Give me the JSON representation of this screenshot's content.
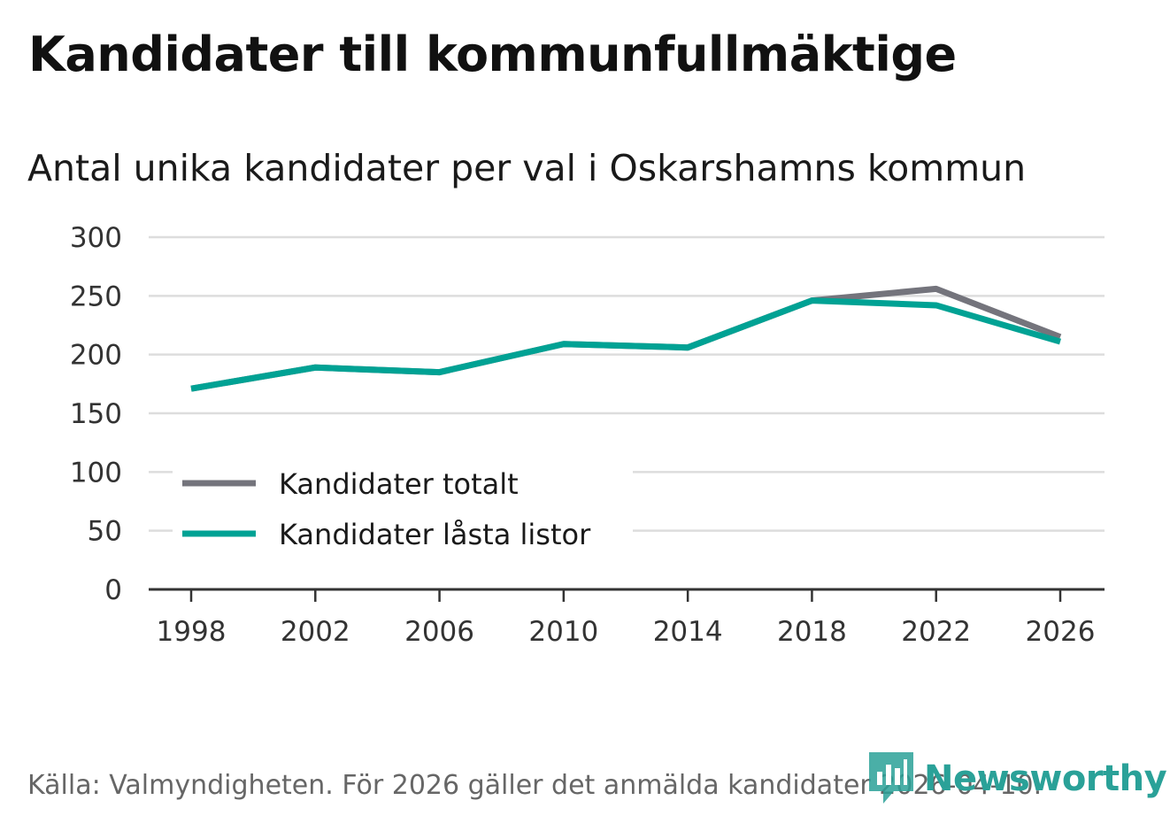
{
  "title": "Kandidater till kommunfullmäktige",
  "subtitle": "Antal unika kandidater per val i Oskarshamns kommun",
  "source": "Källa: Valmyndigheten. För 2026 gäller det anmälda kandidater 2026-04-10.",
  "brand": "Newsworthy",
  "colors": {
    "total": "#74747c",
    "locked": "#00a294",
    "grid": "#dddddd",
    "axis": "#333333",
    "brand": "#2aa198"
  },
  "chart_data": {
    "type": "line",
    "title": "Kandidater till kommunfullmäktige",
    "subtitle": "Antal unika kandidater per val i Oskarshamns kommun",
    "xlabel": "",
    "ylabel": "",
    "x": [
      "1998",
      "2002",
      "2006",
      "2010",
      "2014",
      "2018",
      "2022",
      "2026"
    ],
    "ylim": [
      0,
      300
    ],
    "yticks": [
      0,
      50,
      100,
      150,
      200,
      250,
      300
    ],
    "grid": true,
    "legend_position": "bottom-left",
    "series": [
      {
        "name": "Kandidater totalt",
        "color": "#74747c",
        "values": [
          171,
          189,
          185,
          209,
          206,
          246,
          256,
          215
        ]
      },
      {
        "name": "Kandidater låsta listor",
        "color": "#00a294",
        "values": [
          171,
          189,
          185,
          209,
          206,
          246,
          242,
          211
        ]
      }
    ]
  }
}
